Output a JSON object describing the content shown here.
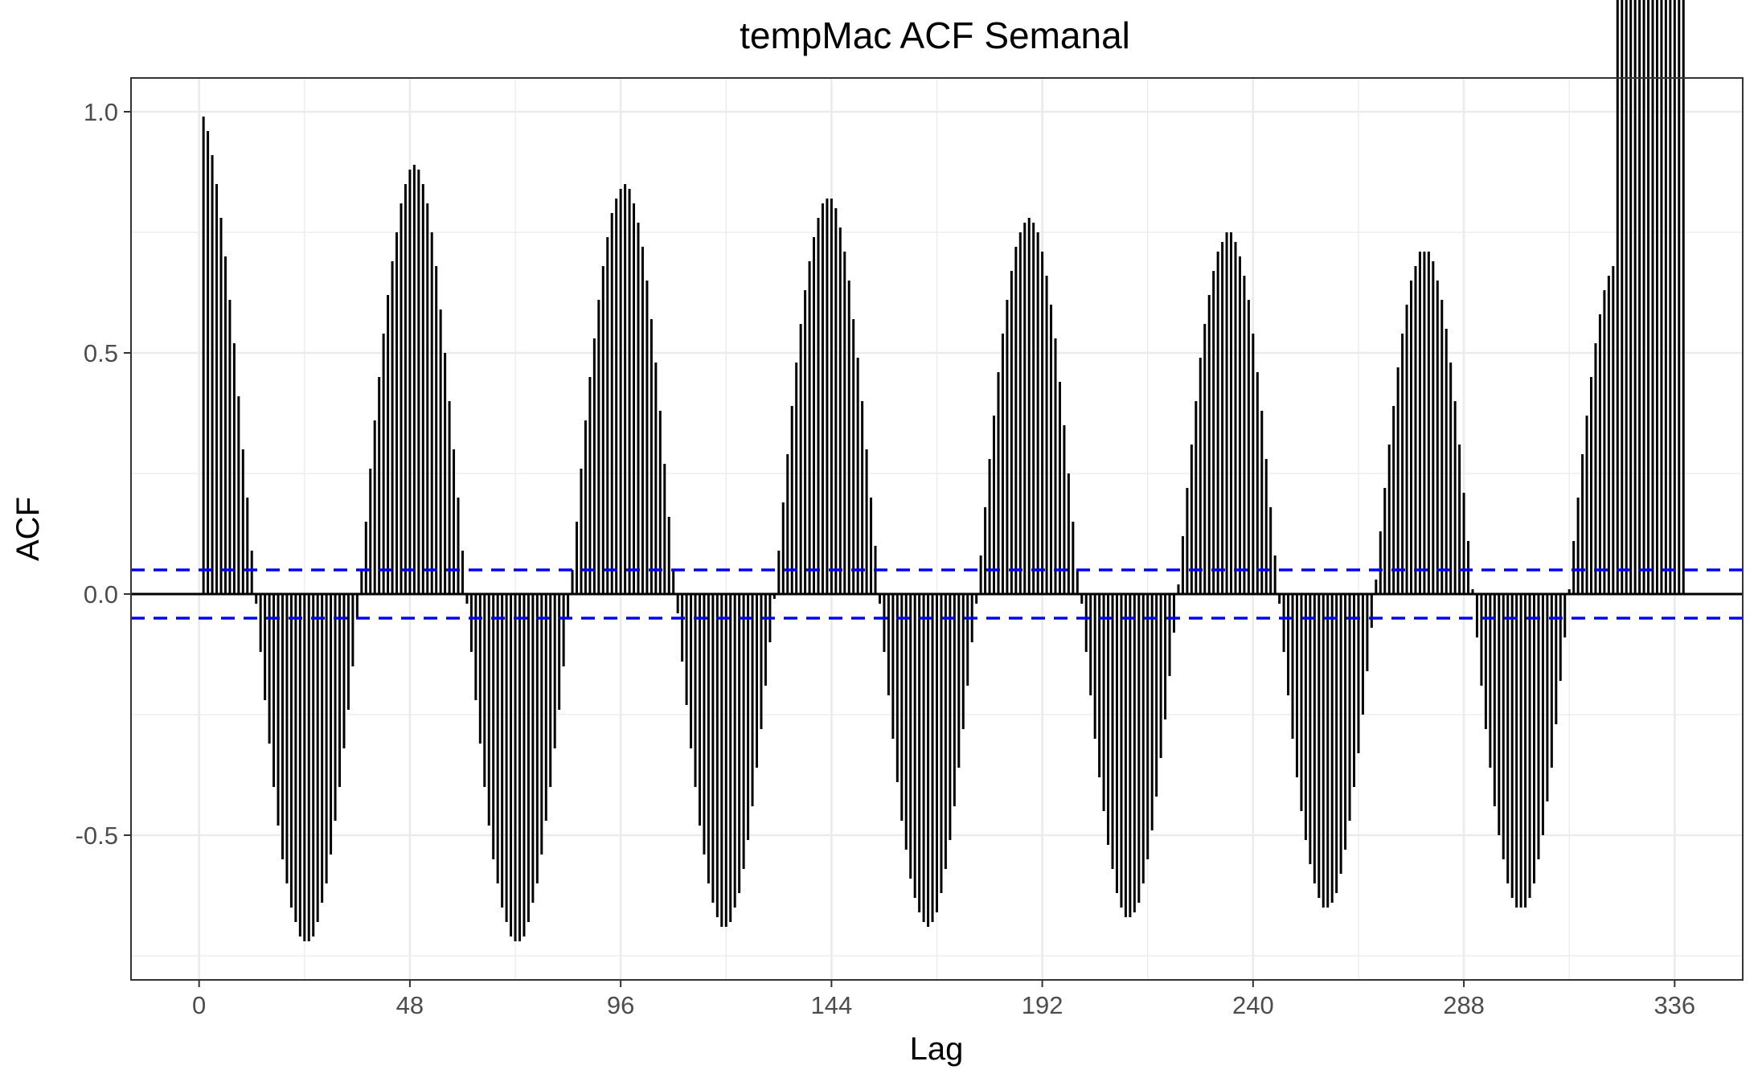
{
  "chart_data": {
    "type": "bar",
    "subtype": "acf-spikes",
    "title": "tempMac ACF Semanal",
    "xlabel": "Lag",
    "ylabel": "ACF",
    "xlim": [
      -15.5,
      351.5
    ],
    "ylim": [
      -0.8,
      1.07
    ],
    "x_ticks": [
      0,
      48,
      96,
      144,
      192,
      240,
      288,
      336
    ],
    "x_tick_labels": [
      "0",
      "48",
      "96",
      "144",
      "192",
      "240",
      "288",
      "336"
    ],
    "y_ticks": [
      -0.5,
      0.0,
      0.5,
      1.0
    ],
    "y_tick_labels": [
      "-0.5",
      "0.0",
      "0.5",
      "1.0"
    ],
    "confidence_bound": 0.05,
    "grid": true,
    "colors": {
      "bars": "#000000",
      "confidence": "#0000ff",
      "grid": "#ebebeb",
      "panel_border": "#333333"
    },
    "lags": [
      1,
      2,
      3,
      4,
      5,
      6,
      7,
      8,
      9,
      10,
      11,
      12,
      13,
      14,
      15,
      16,
      17,
      18,
      19,
      20,
      21,
      22,
      23,
      24,
      25,
      26,
      27,
      28,
      29,
      30,
      31,
      32,
      33,
      34,
      35,
      36,
      37,
      38,
      39,
      40,
      41,
      42,
      43,
      44,
      45,
      46,
      47,
      48,
      49,
      50,
      51,
      52,
      53,
      54,
      55,
      56,
      57,
      58,
      59,
      60,
      61,
      62,
      63,
      64,
      65,
      66,
      67,
      68,
      69,
      70,
      71,
      72,
      73,
      74,
      75,
      76,
      77,
      78,
      79,
      80,
      81,
      82,
      83,
      84,
      85,
      86,
      87,
      88,
      89,
      90,
      91,
      92,
      93,
      94,
      95,
      96,
      97,
      98,
      99,
      100,
      101,
      102,
      103,
      104,
      105,
      106,
      107,
      108,
      109,
      110,
      111,
      112,
      113,
      114,
      115,
      116,
      117,
      118,
      119,
      120,
      121,
      122,
      123,
      124,
      125,
      126,
      127,
      128,
      129,
      130,
      131,
      132,
      133,
      134,
      135,
      136,
      137,
      138,
      139,
      140,
      141,
      142,
      143,
      144,
      145,
      146,
      147,
      148,
      149,
      150,
      151,
      152,
      153,
      154,
      155,
      156,
      157,
      158,
      159,
      160,
      161,
      162,
      163,
      164,
      165,
      166,
      167,
      168,
      169,
      170,
      171,
      172,
      173,
      174,
      175,
      176,
      177,
      178,
      179,
      180,
      181,
      182,
      183,
      184,
      185,
      186,
      187,
      188,
      189,
      190,
      191,
      192,
      193,
      194,
      195,
      196,
      197,
      198,
      199,
      200,
      201,
      202,
      203,
      204,
      205,
      206,
      207,
      208,
      209,
      210,
      211,
      212,
      213,
      214,
      215,
      216,
      217,
      218,
      219,
      220,
      221,
      222,
      223,
      224,
      225,
      226,
      227,
      228,
      229,
      230,
      231,
      232,
      233,
      234,
      235,
      236,
      237,
      238,
      239,
      240,
      241,
      242,
      243,
      244,
      245,
      246,
      247,
      248,
      249,
      250,
      251,
      252,
      253,
      254,
      255,
      256,
      257,
      258,
      259,
      260,
      261,
      262,
      263,
      264,
      265,
      266,
      267,
      268,
      269,
      270,
      271,
      272,
      273,
      274,
      275,
      276,
      277,
      278,
      279,
      280,
      281,
      282,
      283,
      284,
      285,
      286,
      287,
      288,
      289,
      290,
      291,
      292,
      293,
      294,
      295,
      296,
      297,
      298,
      299,
      300,
      301,
      302,
      303,
      304,
      305,
      306,
      307,
      308,
      309,
      310,
      311,
      312,
      313,
      314,
      315,
      316,
      317,
      318,
      319,
      320,
      321,
      322,
      323,
      324,
      325,
      326,
      327,
      328,
      329,
      330,
      331,
      332,
      333,
      334,
      335,
      336,
      337,
      338
    ],
    "values": [
      0.99,
      0.96,
      0.91,
      0.85,
      0.78,
      0.7,
      0.61,
      0.52,
      0.41,
      0.3,
      0.2,
      0.09,
      -0.02,
      -0.12,
      -0.22,
      -0.31,
      -0.4,
      -0.48,
      -0.55,
      -0.6,
      -0.65,
      -0.68,
      -0.71,
      -0.72,
      -0.72,
      -0.71,
      -0.68,
      -0.64,
      -0.6,
      -0.54,
      -0.47,
      -0.4,
      -0.32,
      -0.24,
      -0.15,
      -0.05,
      0.05,
      0.15,
      0.26,
      0.36,
      0.45,
      0.54,
      0.62,
      0.69,
      0.75,
      0.81,
      0.85,
      0.88,
      0.89,
      0.88,
      0.85,
      0.81,
      0.75,
      0.68,
      0.59,
      0.5,
      0.4,
      0.3,
      0.2,
      0.09,
      -0.02,
      -0.12,
      -0.22,
      -0.31,
      -0.4,
      -0.48,
      -0.55,
      -0.6,
      -0.65,
      -0.68,
      -0.71,
      -0.72,
      -0.72,
      -0.71,
      -0.68,
      -0.64,
      -0.6,
      -0.54,
      -0.47,
      -0.4,
      -0.32,
      -0.24,
      -0.15,
      -0.05,
      0.05,
      0.15,
      0.26,
      0.36,
      0.45,
      0.53,
      0.61,
      0.68,
      0.74,
      0.79,
      0.82,
      0.84,
      0.85,
      0.84,
      0.81,
      0.77,
      0.72,
      0.65,
      0.57,
      0.48,
      0.38,
      0.27,
      0.16,
      0.05,
      -0.04,
      -0.14,
      -0.23,
      -0.32,
      -0.4,
      -0.48,
      -0.54,
      -0.6,
      -0.64,
      -0.67,
      -0.69,
      -0.69,
      -0.68,
      -0.65,
      -0.62,
      -0.57,
      -0.51,
      -0.44,
      -0.36,
      -0.28,
      -0.19,
      -0.1,
      -0.01,
      0.09,
      0.19,
      0.29,
      0.39,
      0.48,
      0.56,
      0.63,
      0.69,
      0.74,
      0.78,
      0.81,
      0.82,
      0.82,
      0.8,
      0.76,
      0.71,
      0.65,
      0.57,
      0.49,
      0.4,
      0.3,
      0.2,
      0.1,
      -0.02,
      -0.12,
      -0.21,
      -0.3,
      -0.39,
      -0.47,
      -0.53,
      -0.59,
      -0.63,
      -0.66,
      -0.68,
      -0.69,
      -0.68,
      -0.66,
      -0.62,
      -0.57,
      -0.51,
      -0.44,
      -0.36,
      -0.28,
      -0.19,
      -0.1,
      -0.02,
      0.08,
      0.18,
      0.28,
      0.37,
      0.46,
      0.54,
      0.61,
      0.67,
      0.72,
      0.75,
      0.77,
      0.78,
      0.77,
      0.75,
      0.71,
      0.66,
      0.6,
      0.53,
      0.44,
      0.35,
      0.25,
      0.15,
      0.05,
      -0.02,
      -0.12,
      -0.21,
      -0.3,
      -0.38,
      -0.45,
      -0.52,
      -0.57,
      -0.62,
      -0.65,
      -0.67,
      -0.67,
      -0.66,
      -0.64,
      -0.6,
      -0.55,
      -0.49,
      -0.42,
      -0.34,
      -0.26,
      -0.17,
      -0.08,
      0.02,
      0.12,
      0.22,
      0.31,
      0.4,
      0.49,
      0.56,
      0.62,
      0.67,
      0.71,
      0.73,
      0.75,
      0.75,
      0.73,
      0.7,
      0.66,
      0.61,
      0.54,
      0.46,
      0.38,
      0.28,
      0.18,
      0.08,
      -0.02,
      -0.12,
      -0.21,
      -0.3,
      -0.38,
      -0.45,
      -0.51,
      -0.56,
      -0.6,
      -0.63,
      -0.65,
      -0.65,
      -0.64,
      -0.62,
      -0.58,
      -0.53,
      -0.47,
      -0.4,
      -0.33,
      -0.25,
      -0.16,
      -0.07,
      0.03,
      0.13,
      0.22,
      0.31,
      0.39,
      0.47,
      0.54,
      0.6,
      0.65,
      0.68,
      0.71,
      0.71,
      0.71,
      0.69,
      0.65,
      0.61,
      0.55,
      0.48,
      0.4,
      0.31,
      0.21,
      0.11,
      0.01,
      -0.09,
      -0.19,
      -0.28,
      -0.36,
      -0.44,
      -0.5,
      -0.55,
      -0.6,
      -0.63,
      -0.65,
      -0.65,
      -0.65,
      -0.63,
      -0.6,
      -0.55,
      -0.5,
      -0.43,
      -0.36,
      -0.27,
      -0.18,
      -0.09,
      0.01,
      0.11,
      0.2,
      0.29,
      0.37,
      0.45,
      0.52,
      0.58,
      0.63,
      0.66,
      0.68
    ]
  }
}
